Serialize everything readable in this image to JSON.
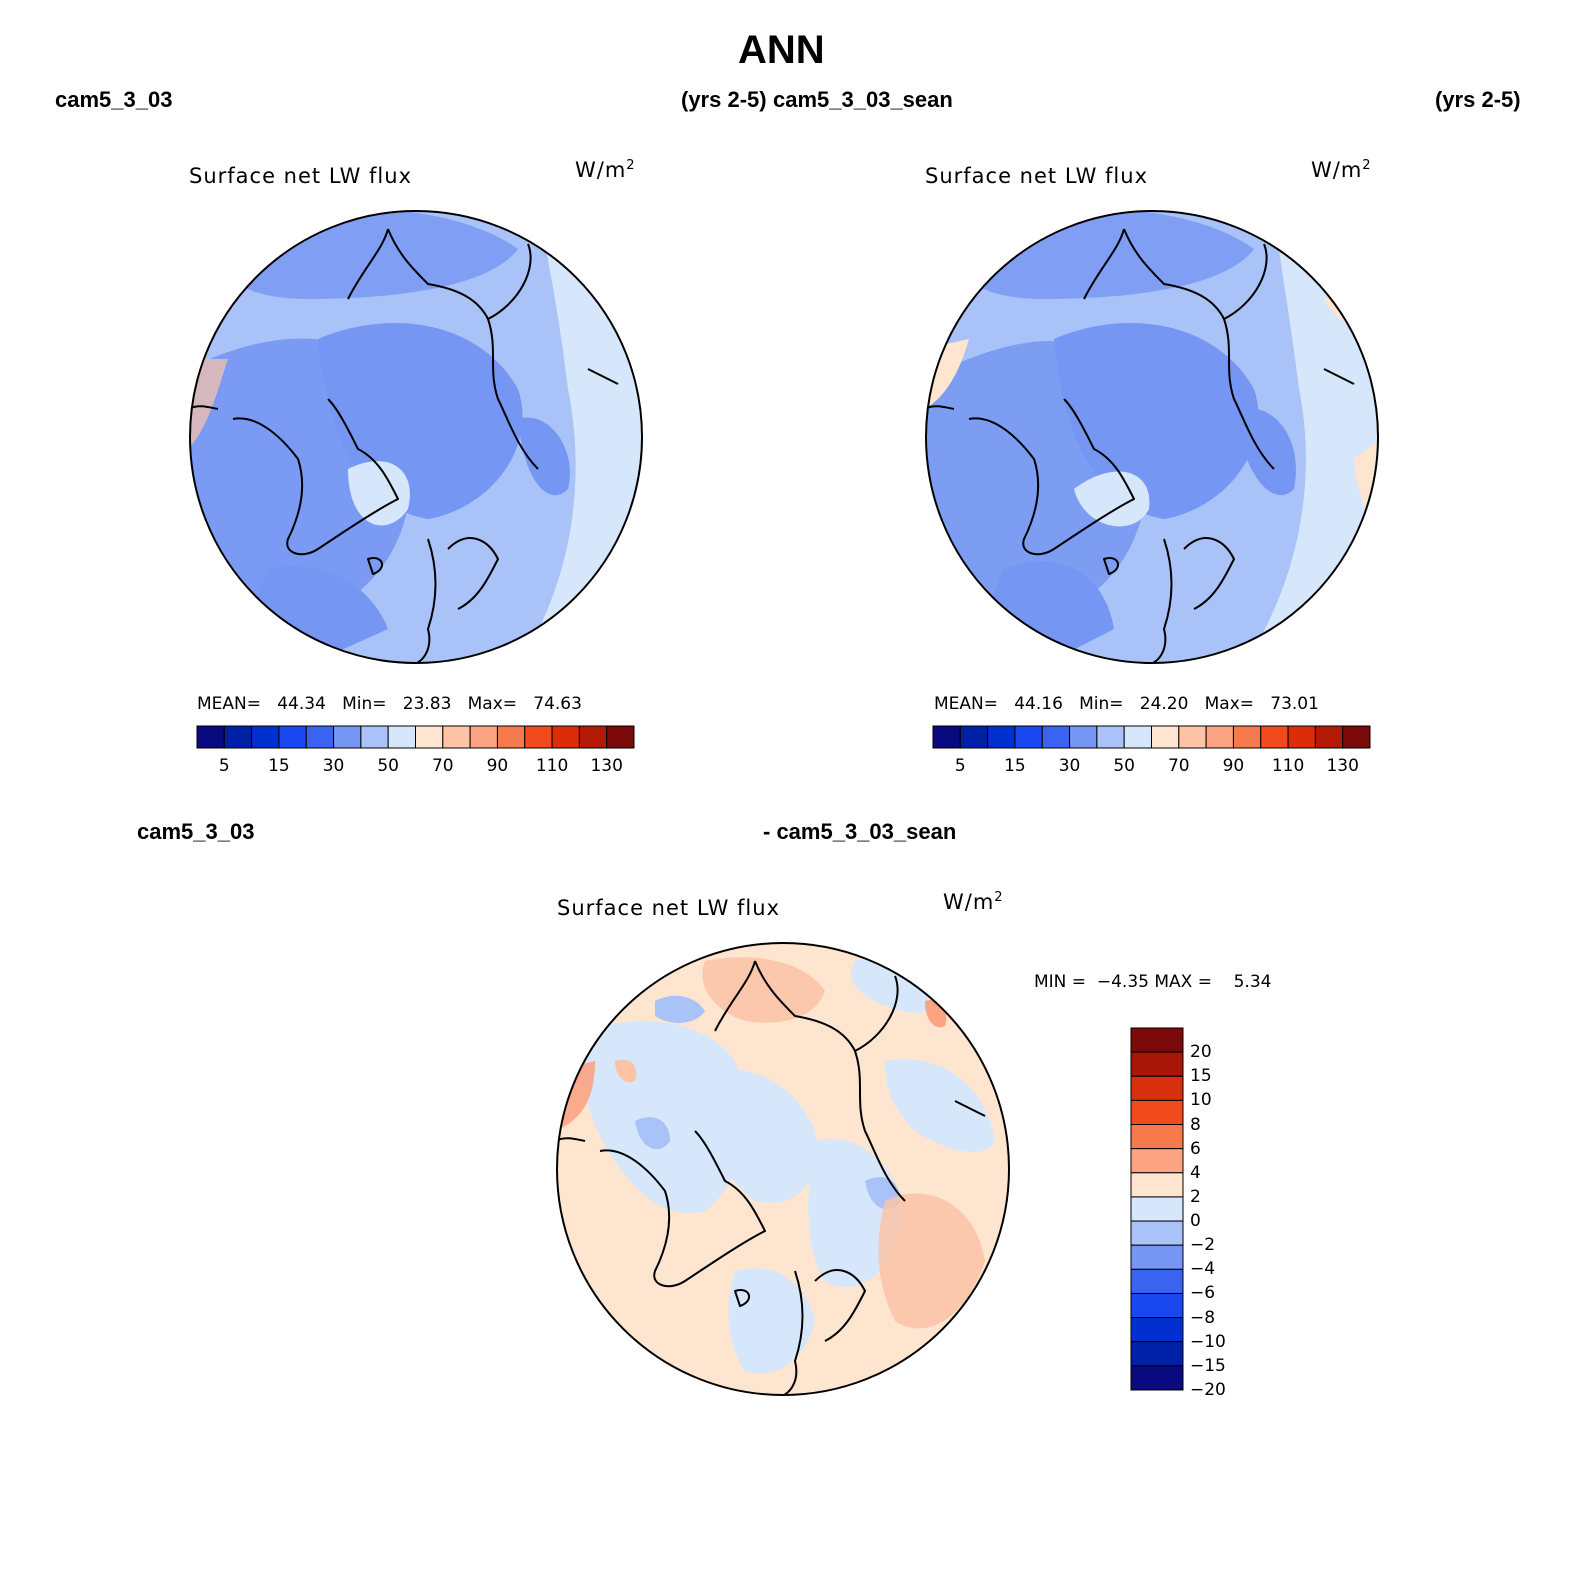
{
  "page": {
    "title": "ANN",
    "case1": "cam5_3_03",
    "years1": "(yrs 2-5)",
    "case2": "cam5_3_03_sean",
    "years2": "(yrs 2-5)",
    "diff_left": "cam5_3_03",
    "diff_right": "- cam5_3_03_sean"
  },
  "chart_data": [
    {
      "type": "map",
      "projection": "polar-stereographic-north",
      "title": "Surface net LW flux",
      "units": "W/m",
      "units_exp": "2",
      "stats": {
        "mean_label": "MEAN=",
        "mean": "44.34",
        "min_label": "Min=",
        "min": "23.83",
        "max_label": "Max=",
        "max": "74.63"
      },
      "colorbar": {
        "orientation": "horizontal",
        "colors": [
          "#0a0a80",
          "#0020a8",
          "#0030d0",
          "#1a48f0",
          "#3a64f0",
          "#7596f2",
          "#a9c2f7",
          "#d6e6fb",
          "#fde5d0",
          "#fcc3a7",
          "#fba383",
          "#f77a4d",
          "#f24a1c",
          "#dc2c08",
          "#b41a05",
          "#7d0a0a"
        ],
        "ticks": [
          "5",
          "15",
          "30",
          "50",
          "70",
          "90",
          "110",
          "130"
        ]
      }
    },
    {
      "type": "map",
      "projection": "polar-stereographic-north",
      "title": "Surface net LW flux",
      "units": "W/m",
      "units_exp": "2",
      "stats": {
        "mean_label": "MEAN=",
        "mean": "44.16",
        "min_label": "Min=",
        "min": "24.20",
        "max_label": "Max=",
        "max": "73.01"
      },
      "colorbar": {
        "orientation": "horizontal",
        "colors": [
          "#0a0a80",
          "#0020a8",
          "#0030d0",
          "#1a48f0",
          "#3a64f0",
          "#7596f2",
          "#a9c2f7",
          "#d6e6fb",
          "#fde5d0",
          "#fcc3a7",
          "#fba383",
          "#f77a4d",
          "#f24a1c",
          "#dc2c08",
          "#b41a05",
          "#7d0a0a"
        ],
        "ticks": [
          "5",
          "15",
          "30",
          "50",
          "70",
          "90",
          "110",
          "130"
        ]
      }
    },
    {
      "type": "map",
      "projection": "polar-stereographic-north",
      "title": "Surface net LW flux",
      "units": "W/m",
      "units_exp": "2",
      "stats": {
        "min_label": "MIN =",
        "min": "−4.35",
        "max_label": "MAX =",
        "max": "5.34"
      },
      "colorbar": {
        "orientation": "vertical",
        "colors": [
          "#7d0a0a",
          "#a8160a",
          "#d8300c",
          "#f24a1c",
          "#f77a4d",
          "#fba383",
          "#fde5d0",
          "#d6e6fb",
          "#a9c2f7",
          "#7596f2",
          "#3a64f0",
          "#1a48f0",
          "#0030d0",
          "#0020a8",
          "#0a0a80"
        ],
        "ticks": [
          "20",
          "15",
          "10",
          "8",
          "6",
          "4",
          "2",
          "0",
          "−2",
          "−4",
          "−6",
          "−8",
          "−10",
          "−15",
          "−20"
        ]
      }
    }
  ]
}
